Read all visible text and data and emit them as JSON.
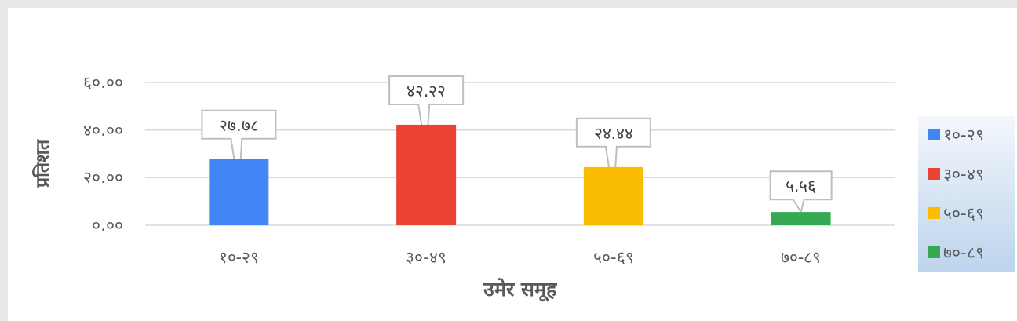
{
  "chart_data": {
    "type": "bar",
    "xlabel": "उमेर समूह",
    "ylabel": "प्रतिशत",
    "categories": [
      "१०-२९",
      "३०-४९",
      "५०-६९",
      "७०-८९"
    ],
    "series": [
      {
        "name": "१०-२९",
        "color": "#4285f4",
        "values": [
          27.78,
          null,
          null,
          null
        ],
        "value_labels": [
          "२७.७८",
          null,
          null,
          null
        ]
      },
      {
        "name": "३०-४९",
        "color": "#ea4335",
        "values": [
          null,
          42.22,
          null,
          null
        ],
        "value_labels": [
          null,
          "४२.२२",
          null,
          null
        ]
      },
      {
        "name": "५०-६९",
        "color": "#fbbc04",
        "values": [
          null,
          null,
          24.44,
          null
        ],
        "value_labels": [
          null,
          null,
          "२४.४४",
          null
        ]
      },
      {
        "name": "७०-८९",
        "color": "#34a853",
        "values": [
          null,
          null,
          null,
          5.56
        ],
        "value_labels": [
          null,
          null,
          null,
          "५.५६"
        ]
      }
    ],
    "ylim": [
      0,
      60
    ],
    "yticks": [
      {
        "value": 0,
        "label": "०.००"
      },
      {
        "value": 20,
        "label": "२०.००"
      },
      {
        "value": 40,
        "label": "४०.००"
      },
      {
        "value": 60,
        "label": "६०.००"
      }
    ],
    "grid": "y",
    "legend": "right"
  }
}
